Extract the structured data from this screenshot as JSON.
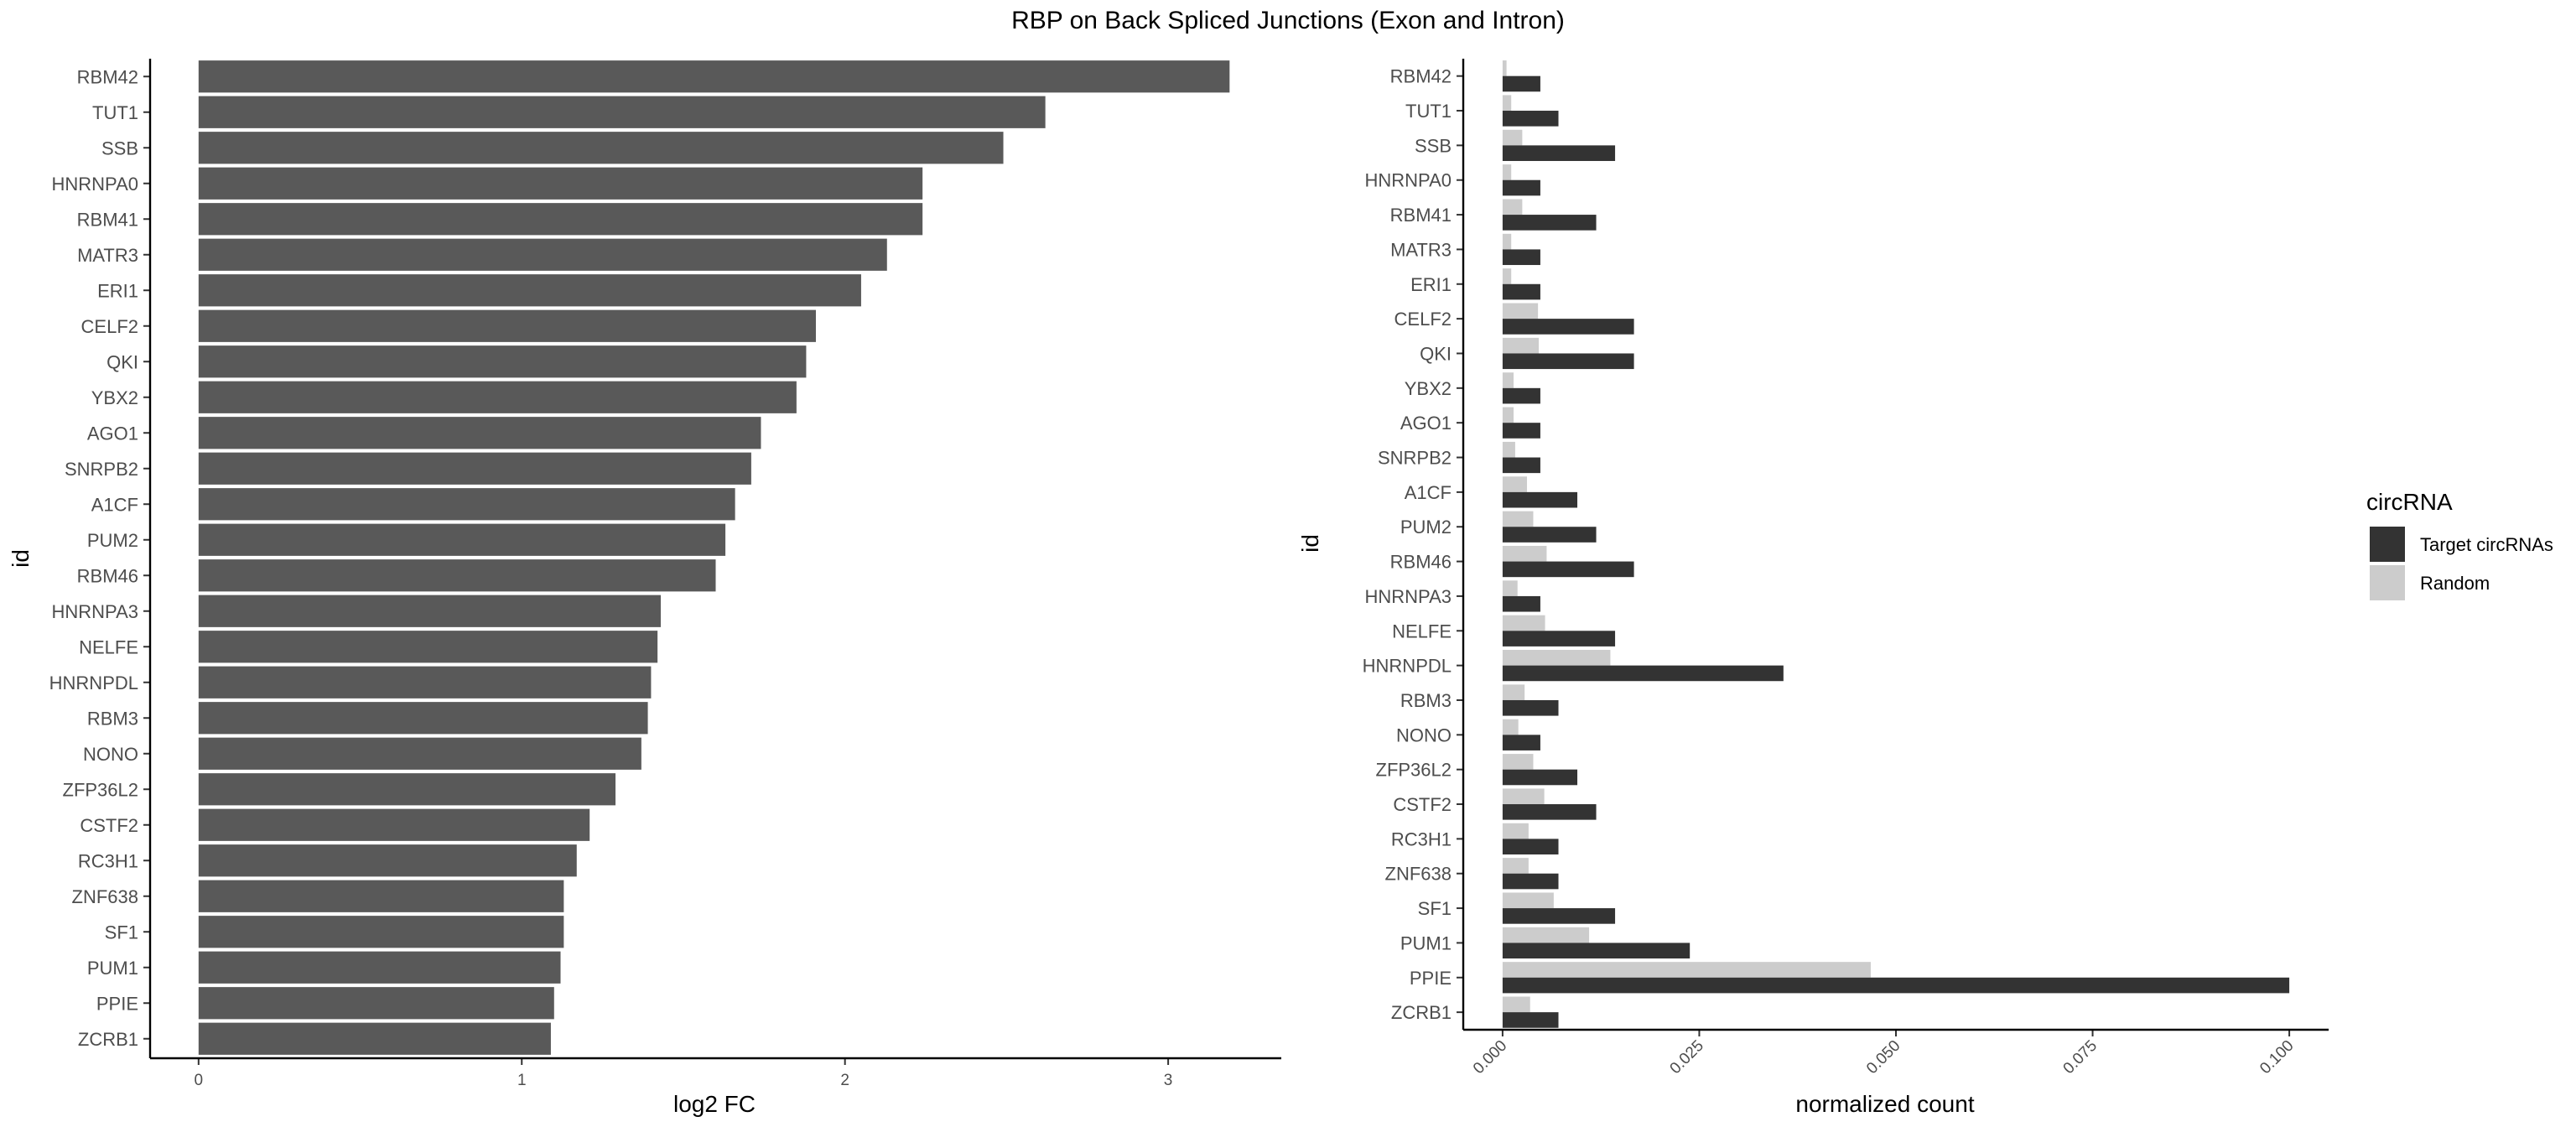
{
  "title": "RBP on Back Spliced Junctions (Exon and Intron)",
  "colors": {
    "left_bar": "#595959",
    "target": "#333333",
    "random": "#cccccc",
    "axis": "#000000",
    "text": "#4d4d4d"
  },
  "chart_data": [
    {
      "type": "bar",
      "orientation": "horizontal",
      "categories": [
        "RBM42",
        "TUT1",
        "SSB",
        "HNRNPA0",
        "RBM41",
        "MATR3",
        "ERI1",
        "CELF2",
        "QKI",
        "YBX2",
        "AGO1",
        "SNRPB2",
        "A1CF",
        "PUM2",
        "RBM46",
        "HNRNPA3",
        "NELFE",
        "HNRNPDL",
        "RBM3",
        "NONO",
        "ZFP36L2",
        "CSTF2",
        "RC3H1",
        "ZNF638",
        "SF1",
        "PUM1",
        "PPIE",
        "ZCRB1"
      ],
      "values": [
        3.19,
        2.62,
        2.49,
        2.24,
        2.24,
        2.13,
        2.05,
        1.91,
        1.88,
        1.85,
        1.74,
        1.71,
        1.66,
        1.63,
        1.6,
        1.43,
        1.42,
        1.4,
        1.39,
        1.37,
        1.29,
        1.21,
        1.17,
        1.13,
        1.13,
        1.12,
        1.1,
        1.09
      ],
      "xlabel": "log2 FC",
      "ylabel": "id",
      "xlim": [
        -0.15,
        3.35
      ],
      "xticks": [
        0,
        1,
        2,
        3
      ],
      "grid": false
    },
    {
      "type": "bar",
      "orientation": "horizontal",
      "grouped": true,
      "categories": [
        "RBM42",
        "TUT1",
        "SSB",
        "HNRNPA0",
        "RBM41",
        "MATR3",
        "ERI1",
        "CELF2",
        "QKI",
        "YBX2",
        "AGO1",
        "SNRPB2",
        "A1CF",
        "PUM2",
        "RBM46",
        "HNRNPA3",
        "NELFE",
        "HNRNPDL",
        "RBM3",
        "NONO",
        "ZFP36L2",
        "CSTF2",
        "RC3H1",
        "ZNF638",
        "SF1",
        "PUM1",
        "PPIE",
        "ZCRB1"
      ],
      "series": [
        {
          "name": "Target circRNAs",
          "values": [
            0.0048,
            0.0071,
            0.0143,
            0.0048,
            0.0119,
            0.0048,
            0.0048,
            0.0167,
            0.0167,
            0.0048,
            0.0048,
            0.0048,
            0.0095,
            0.0119,
            0.0167,
            0.0048,
            0.0143,
            0.0357,
            0.0071,
            0.0048,
            0.0095,
            0.0119,
            0.0071,
            0.0071,
            0.0143,
            0.0238,
            0.1,
            0.0071
          ]
        },
        {
          "name": "Random",
          "values": [
            0.0005,
            0.0011,
            0.0025,
            0.0011,
            0.0025,
            0.0011,
            0.0011,
            0.0045,
            0.0046,
            0.0014,
            0.0014,
            0.0016,
            0.0031,
            0.0039,
            0.0056,
            0.0019,
            0.0054,
            0.0137,
            0.0028,
            0.002,
            0.0039,
            0.0053,
            0.0033,
            0.0033,
            0.0065,
            0.011,
            0.0468,
            0.0035
          ]
        }
      ],
      "xlabel": "normalized count",
      "ylabel": "id",
      "xlim": [
        -0.005,
        0.105
      ],
      "xticks": [
        "0.000",
        "0.025",
        "0.050",
        "0.075",
        "0.100"
      ],
      "legend": {
        "title": "circRNA",
        "position": "right"
      },
      "grid": false
    }
  ]
}
